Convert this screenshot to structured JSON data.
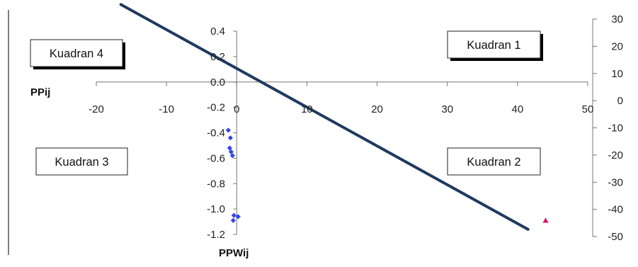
{
  "chart_data": {
    "type": "scatter",
    "title": "",
    "xlabel": "PPWij",
    "ylabel": "PPij",
    "xlim": [
      -20,
      50
    ],
    "x_ticks": [
      -20,
      -10,
      0,
      10,
      20,
      30,
      40,
      50
    ],
    "ylim_left": [
      -1.2,
      0.4
    ],
    "y_ticks_left": [
      "0.4",
      "0.2",
      "0.0",
      "-0.2",
      "-0.4",
      "-0.6",
      "-0.8",
      "-1.0",
      "-1.2"
    ],
    "ylim_right": [
      -50,
      30
    ],
    "y_ticks_right": [
      30,
      20,
      10,
      0,
      -10,
      -20,
      -30,
      -40,
      -50
    ],
    "grid": false,
    "legend": "none",
    "quadrants": [
      "Kuadran 4",
      "Kuadran 1",
      "Kuadran 3",
      "Kuadran 2"
    ],
    "series": [
      {
        "marker": "diamond",
        "color": "#3344ee",
        "points": [
          [
            -1.2,
            -0.38
          ],
          [
            -0.9,
            -0.44
          ],
          [
            -1.0,
            -0.52
          ],
          [
            -0.8,
            -0.55
          ],
          [
            -0.6,
            -0.58
          ],
          [
            -0.4,
            -1.05
          ],
          [
            0.2,
            -1.06
          ],
          [
            -0.5,
            -1.09
          ]
        ]
      },
      {
        "marker": "triangle",
        "color": "#e0106a",
        "points": [
          [
            44,
            -1.09
          ]
        ]
      }
    ],
    "line": {
      "color": "#1f3a5f",
      "points": [
        [
          -16.5,
          0.61
        ],
        [
          41.5,
          -1.16
        ]
      ]
    }
  }
}
